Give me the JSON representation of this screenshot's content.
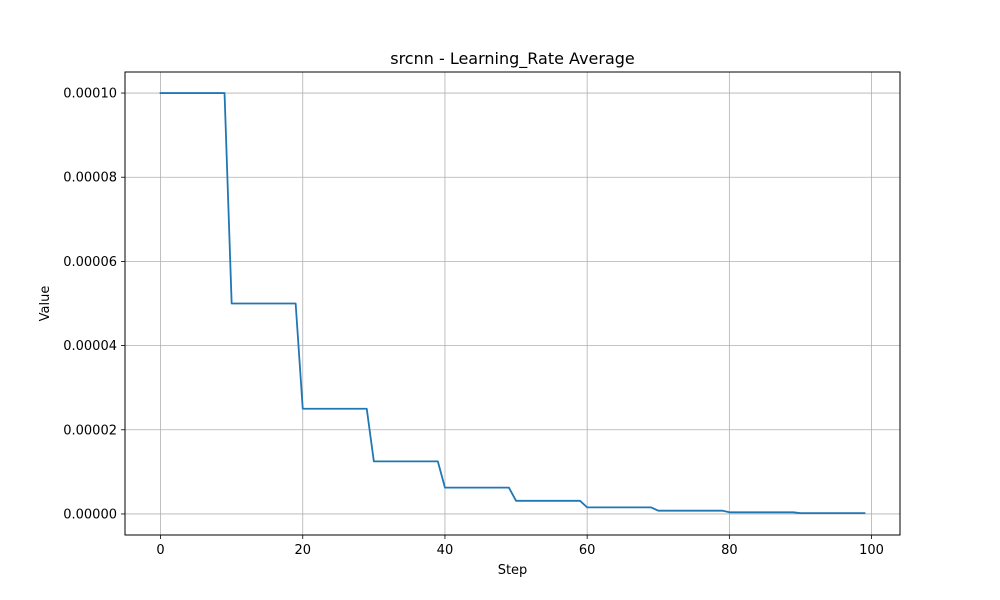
{
  "chart_data": {
    "type": "line",
    "title": "srcnn - Learning_Rate Average",
    "xlabel": "Step",
    "ylabel": "Value",
    "xlim": [
      -5,
      104
    ],
    "ylim": [
      -5e-06,
      0.000105
    ],
    "xticks": [
      0,
      20,
      40,
      60,
      80,
      100
    ],
    "xtick_labels": [
      "0",
      "20",
      "40",
      "60",
      "80",
      "100"
    ],
    "yticks": [
      0,
      2e-05,
      4e-05,
      6e-05,
      8e-05,
      0.0001
    ],
    "ytick_labels": [
      "0.00000",
      "0.00002",
      "0.00004",
      "0.00006",
      "0.00008",
      "0.00010"
    ],
    "grid": true,
    "series": [
      {
        "color": "#1f77b4",
        "x": [
          0,
          9,
          10,
          19,
          20,
          29,
          30,
          39,
          40,
          49,
          50,
          59,
          60,
          69,
          70,
          79,
          80,
          89,
          90,
          99
        ],
        "y": [
          0.0001,
          0.0001,
          5e-05,
          5e-05,
          2.5e-05,
          2.5e-05,
          1.25e-05,
          1.25e-05,
          6.25e-06,
          6.25e-06,
          3.125e-06,
          3.125e-06,
          1.5625e-06,
          1.5625e-06,
          7.8125e-07,
          7.8125e-07,
          3.90625e-07,
          3.90625e-07,
          1.953125e-07,
          1.953125e-07
        ]
      }
    ]
  }
}
